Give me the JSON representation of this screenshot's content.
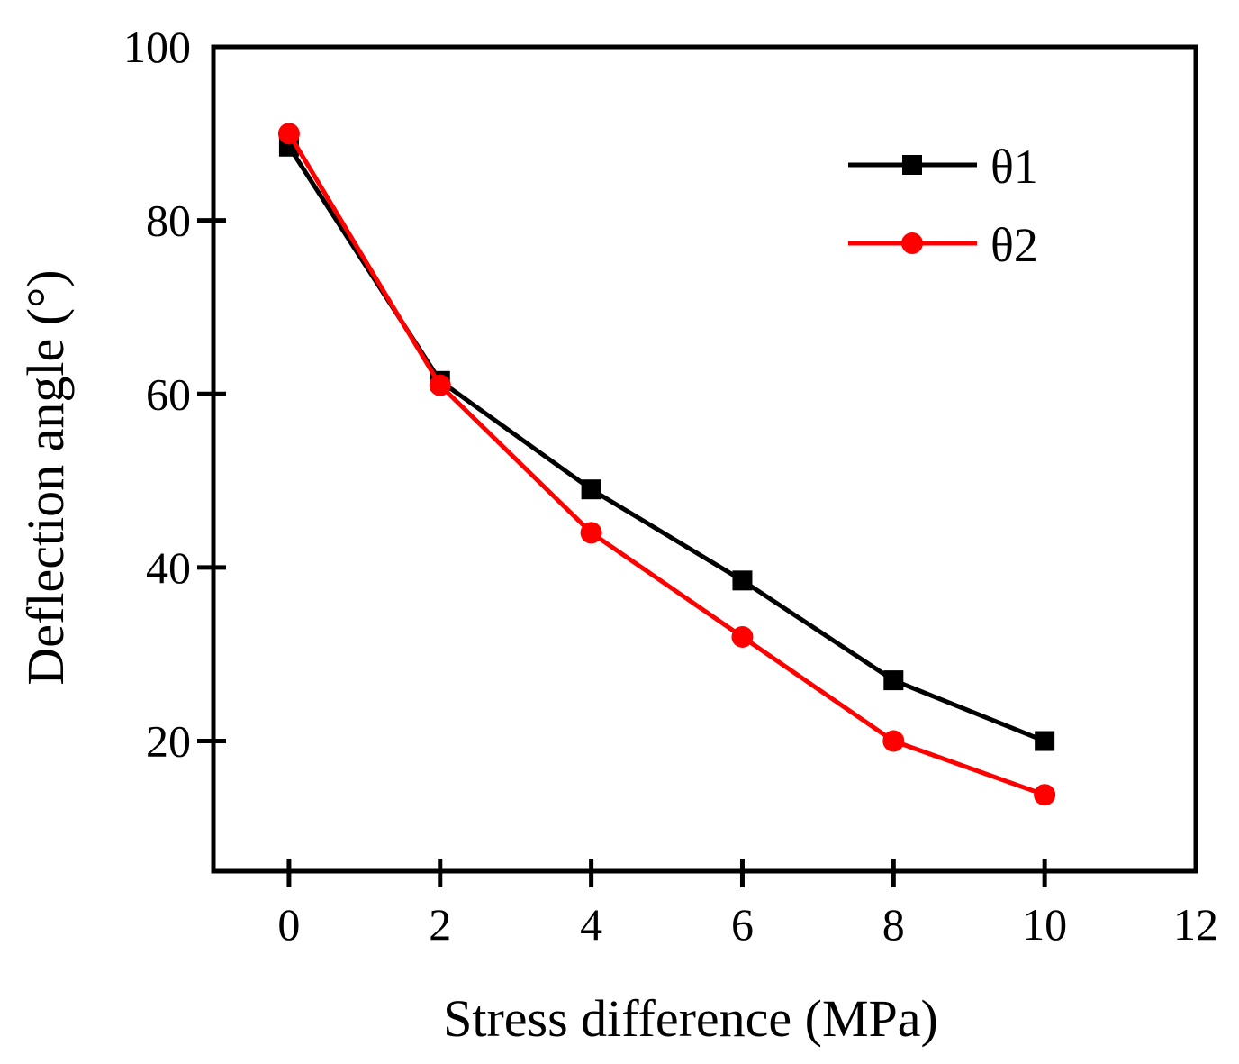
{
  "chart_data": {
    "type": "line",
    "title": "",
    "xlabel": "Stress difference (MPa)",
    "ylabel": "Deflection angle (°)",
    "xlim": [
      -1,
      12
    ],
    "ylim": [
      5,
      100
    ],
    "xticks": [
      0,
      2,
      4,
      6,
      8,
      10,
      12
    ],
    "yticks": [
      20,
      40,
      60,
      80,
      100
    ],
    "grid": false,
    "legend_position": "top-right",
    "series": [
      {
        "name": "θ1",
        "color": "#000000",
        "marker": "square",
        "x": [
          0,
          2,
          4,
          6,
          8,
          10
        ],
        "y": [
          88.5,
          61.5,
          49,
          38.5,
          27,
          20
        ]
      },
      {
        "name": "θ2",
        "color": "#ff0000",
        "marker": "circle",
        "x": [
          0,
          2,
          4,
          6,
          8,
          10
        ],
        "y": [
          90,
          61,
          44,
          32,
          20,
          13.8
        ]
      }
    ]
  }
}
